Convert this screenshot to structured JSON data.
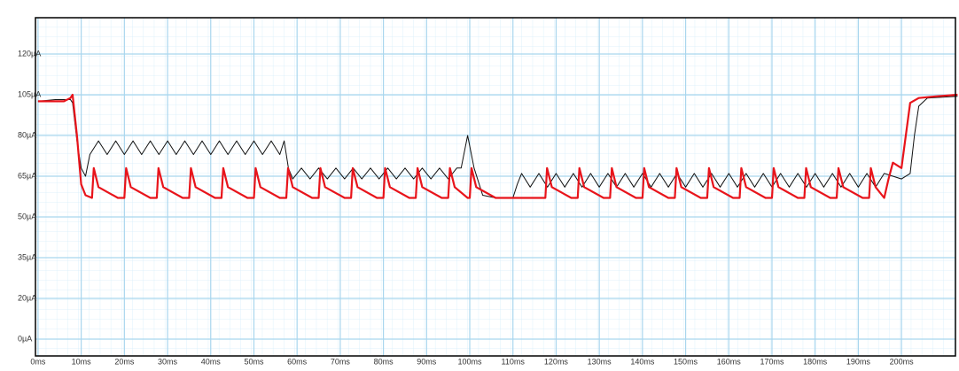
{
  "chart_data": {
    "type": "line",
    "xlim": [
      -0.6,
      212.5
    ],
    "xticks": [
      {
        "value": 0,
        "label": "0ms"
      },
      {
        "value": 10,
        "label": "10ms"
      },
      {
        "value": 20,
        "label": "20ms"
      },
      {
        "value": 30,
        "label": "30ms"
      },
      {
        "value": 40,
        "label": "40ms"
      },
      {
        "value": 50,
        "label": "50ms"
      },
      {
        "value": 60,
        "label": "60ms"
      },
      {
        "value": 70,
        "label": "70ms"
      },
      {
        "value": 80,
        "label": "80ms"
      },
      {
        "value": 90,
        "label": "90ms"
      },
      {
        "value": 100,
        "label": "100ms"
      },
      {
        "value": 110,
        "label": "110ms"
      },
      {
        "value": 120,
        "label": "120ms"
      },
      {
        "value": 130,
        "label": "130ms"
      },
      {
        "value": 140,
        "label": "140ms"
      },
      {
        "value": 150,
        "label": "150ms"
      },
      {
        "value": 160,
        "label": "160ms"
      },
      {
        "value": 170,
        "label": "170ms"
      },
      {
        "value": 180,
        "label": "180ms"
      },
      {
        "value": 190,
        "label": "190ms"
      },
      {
        "value": 200,
        "label": "200ms"
      }
    ],
    "ylim": [
      -8,
      133
    ],
    "yticks": [
      {
        "value": 0,
        "label": "0µA"
      },
      {
        "value": 20,
        "label": "20µA"
      },
      {
        "value": 35,
        "label": "35µA"
      },
      {
        "value": 50,
        "label": "50µA"
      },
      {
        "value": 65,
        "label": "65µA"
      },
      {
        "value": 80,
        "label": "80µA"
      },
      {
        "value": 105,
        "label": "105µA"
      },
      {
        "value": 120,
        "label": "120µA"
      }
    ],
    "grid": true,
    "series": [
      {
        "color": "#111111",
        "x": [
          0,
          4,
          7.5,
          8,
          9,
          10,
          11,
          12,
          14,
          16,
          18,
          20,
          22,
          24,
          26,
          28,
          30,
          32,
          34,
          36,
          38,
          40,
          42,
          44,
          46,
          48,
          50,
          52,
          54,
          56,
          57,
          58,
          59,
          61,
          63,
          65,
          67,
          69,
          71,
          73,
          75,
          77,
          79,
          81,
          83,
          85,
          87,
          89,
          91,
          93,
          95,
          97,
          98,
          99.5,
          101,
          103,
          106,
          110,
          111,
          112,
          114,
          116,
          118,
          120,
          122,
          124,
          126,
          128,
          130,
          132,
          134,
          136,
          138,
          140,
          142,
          144,
          146,
          148,
          150,
          152,
          154,
          156,
          158,
          160,
          162,
          164,
          166,
          168,
          170,
          172,
          174,
          176,
          178,
          180,
          182,
          184,
          186,
          188,
          190,
          192,
          194,
          196,
          198,
          200,
          202,
          203,
          204,
          206,
          213
        ],
        "values": [
          101,
          102,
          102,
          100,
          78,
          68,
          65,
          73,
          78,
          73,
          78,
          73,
          78,
          73,
          78,
          73,
          78,
          73,
          78,
          73,
          78,
          73,
          78,
          73,
          78,
          73,
          78,
          73,
          78,
          73,
          78,
          68,
          64,
          68,
          64,
          68,
          64,
          68,
          64,
          68,
          64,
          68,
          64,
          68,
          64,
          68,
          64,
          68,
          64,
          68,
          64,
          68,
          68,
          80,
          68,
          58,
          57,
          57,
          62,
          66,
          61,
          66,
          61,
          66,
          61,
          66,
          61,
          66,
          61,
          66,
          61,
          66,
          61,
          66,
          61,
          66,
          61,
          66,
          61,
          66,
          61,
          66,
          61,
          66,
          61,
          66,
          61,
          66,
          61,
          66,
          61,
          66,
          61,
          66,
          61,
          66,
          61,
          66,
          61,
          66,
          61,
          66,
          65,
          64,
          66,
          80,
          98,
          103,
          104
        ]
      },
      {
        "color": "#e8141b",
        "x": [
          0,
          3,
          6,
          7.5,
          8,
          9,
          10,
          11,
          12.5,
          12.9,
          14,
          18.5,
          20,
          20.4,
          21.5,
          26,
          27.5,
          27.9,
          29,
          33.5,
          35,
          35.4,
          36.5,
          41,
          42.5,
          42.9,
          44,
          48.5,
          50,
          50.4,
          51.5,
          56,
          57.5,
          57.9,
          59,
          63.5,
          65,
          65.4,
          66.5,
          71,
          72.5,
          72.9,
          74,
          78.5,
          80,
          80.4,
          81.5,
          86,
          87.5,
          87.9,
          89,
          93.5,
          95,
          95.4,
          96.5,
          99.5,
          100,
          100.4,
          101.5,
          106,
          110,
          117.5,
          117.9,
          119,
          123.5,
          125,
          125.4,
          126.5,
          131,
          132.5,
          132.9,
          134,
          138.5,
          140,
          140.4,
          141.5,
          146,
          147.5,
          147.9,
          149,
          153.5,
          155,
          155.4,
          156.5,
          161,
          162.5,
          162.9,
          164,
          168.5,
          170,
          170.4,
          171.5,
          176,
          177.5,
          177.9,
          179,
          183.5,
          185,
          185.4,
          186.5,
          191,
          192.5,
          192.9,
          194,
          196,
          197,
          198,
          200,
          201,
          202,
          204,
          208,
          213
        ],
        "values": [
          101,
          101,
          101,
          103,
          105,
          80,
          62,
          58,
          57,
          68,
          61,
          57,
          57,
          68,
          61,
          57,
          57,
          68,
          61,
          57,
          57,
          68,
          61,
          57,
          57,
          68,
          61,
          57,
          57,
          68,
          61,
          57,
          57,
          68,
          61,
          57,
          57,
          68,
          61,
          57,
          57,
          68,
          61,
          57,
          57,
          68,
          61,
          57,
          57,
          68,
          61,
          57,
          57,
          68,
          61,
          57,
          57,
          68,
          61,
          57,
          57,
          57,
          68,
          61,
          57,
          57,
          68,
          61,
          57,
          57,
          68,
          61,
          57,
          57,
          68,
          61,
          57,
          57,
          68,
          61,
          57,
          57,
          68,
          61,
          57,
          57,
          68,
          61,
          57,
          57,
          68,
          61,
          57,
          57,
          68,
          61,
          57,
          57,
          68,
          61,
          57,
          57,
          68,
          61,
          57,
          64,
          70,
          68,
          80,
          100,
          103,
          104,
          105
        ]
      }
    ]
  }
}
